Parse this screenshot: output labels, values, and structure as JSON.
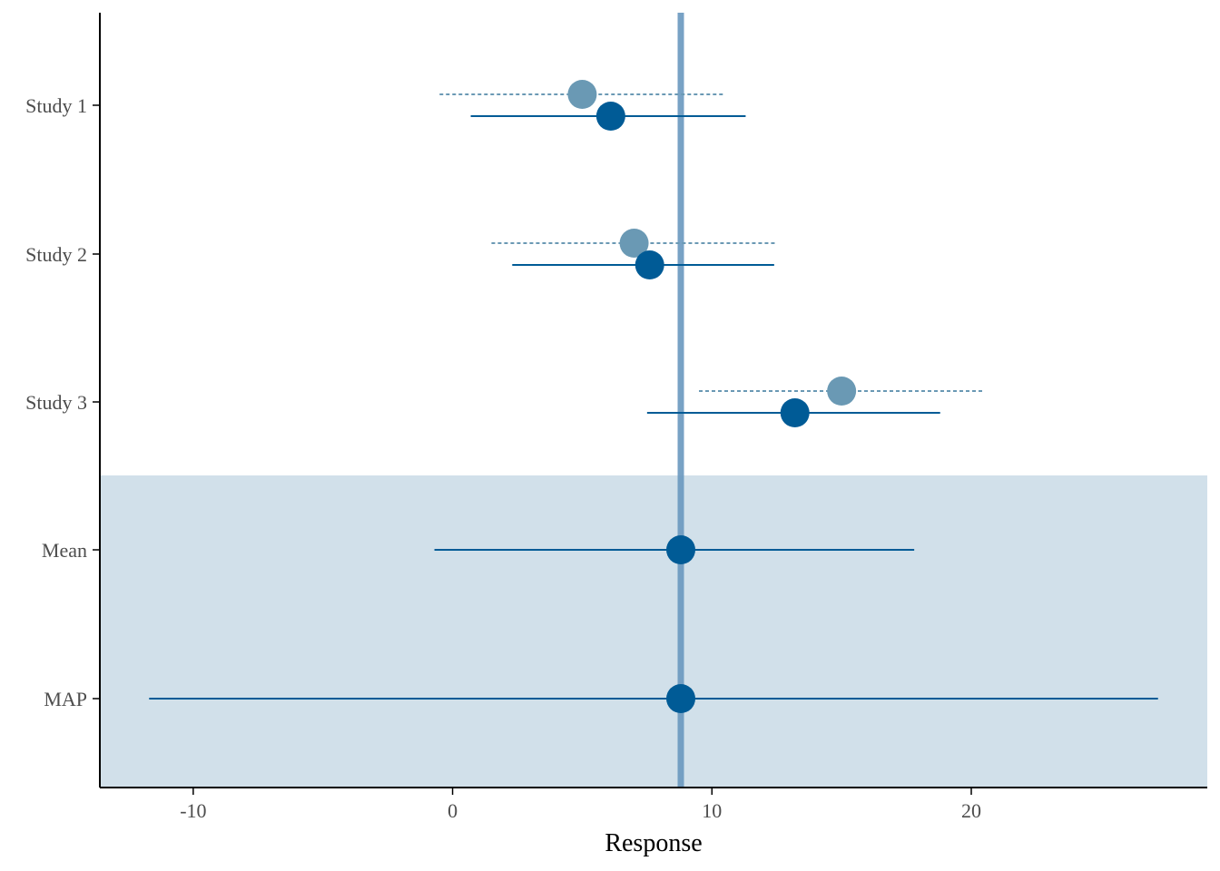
{
  "chart_data": {
    "type": "forest",
    "xlabel": "Response",
    "ylabel": "",
    "xlim": [
      -13.6,
      29.1
    ],
    "x_ticks": [
      -10,
      0,
      10,
      20
    ],
    "x_tick_labels": [
      "-10",
      "0",
      "10",
      "20"
    ],
    "categories": [
      "Study 1",
      "Study 2",
      "Study 3",
      "Mean",
      "MAP"
    ],
    "reference_line": 8.8,
    "shaded_categories": [
      "Mean",
      "MAP"
    ],
    "grid": false,
    "series": [
      {
        "style": "dashed",
        "color": "#6a99b4",
        "points": [
          {
            "category": "Study 1",
            "estimate": 5.0,
            "lower": -0.5,
            "upper": 10.5
          },
          {
            "category": "Study 2",
            "estimate": 7.0,
            "lower": 1.5,
            "upper": 12.5
          },
          {
            "category": "Study 3",
            "estimate": 15.0,
            "lower": 9.5,
            "upper": 20.5
          }
        ]
      },
      {
        "style": "solid",
        "color": "#005b96",
        "points": [
          {
            "category": "Study 1",
            "estimate": 6.1,
            "lower": 0.7,
            "upper": 11.3
          },
          {
            "category": "Study 2",
            "estimate": 7.6,
            "lower": 2.3,
            "upper": 12.4
          },
          {
            "category": "Study 3",
            "estimate": 13.2,
            "lower": 7.5,
            "upper": 18.8
          },
          {
            "category": "Mean",
            "estimate": 8.8,
            "lower": -0.7,
            "upper": 17.8
          },
          {
            "category": "MAP",
            "estimate": 8.8,
            "lower": -11.7,
            "upper": 27.2
          }
        ]
      }
    ]
  },
  "colors": {
    "shading": "#d1e0ea",
    "reference_line": "#6a99bf",
    "axis": "#000000"
  }
}
